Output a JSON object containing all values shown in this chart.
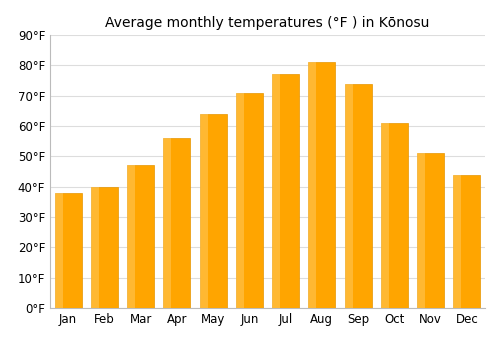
{
  "title": "Average monthly temperatures (°F ) in Kōnosu",
  "months": [
    "Jan",
    "Feb",
    "Mar",
    "Apr",
    "May",
    "Jun",
    "Jul",
    "Aug",
    "Sep",
    "Oct",
    "Nov",
    "Dec"
  ],
  "values": [
    38,
    40,
    47,
    56,
    64,
    71,
    77,
    81,
    74,
    61,
    51,
    44
  ],
  "ylim": [
    0,
    90
  ],
  "yticks": [
    0,
    10,
    20,
    30,
    40,
    50,
    60,
    70,
    80,
    90
  ],
  "ytick_labels": [
    "0°F",
    "10°F",
    "20°F",
    "30°F",
    "40°F",
    "50°F",
    "60°F",
    "70°F",
    "80°F",
    "90°F"
  ],
  "bar_color": "#FFA500",
  "bar_edge_color": "#E69500",
  "background_color": "#ffffff",
  "plot_bg_color": "#ffffff",
  "grid_color": "#dddddd",
  "title_fontsize": 10,
  "tick_fontsize": 8.5,
  "bar_width": 0.75
}
